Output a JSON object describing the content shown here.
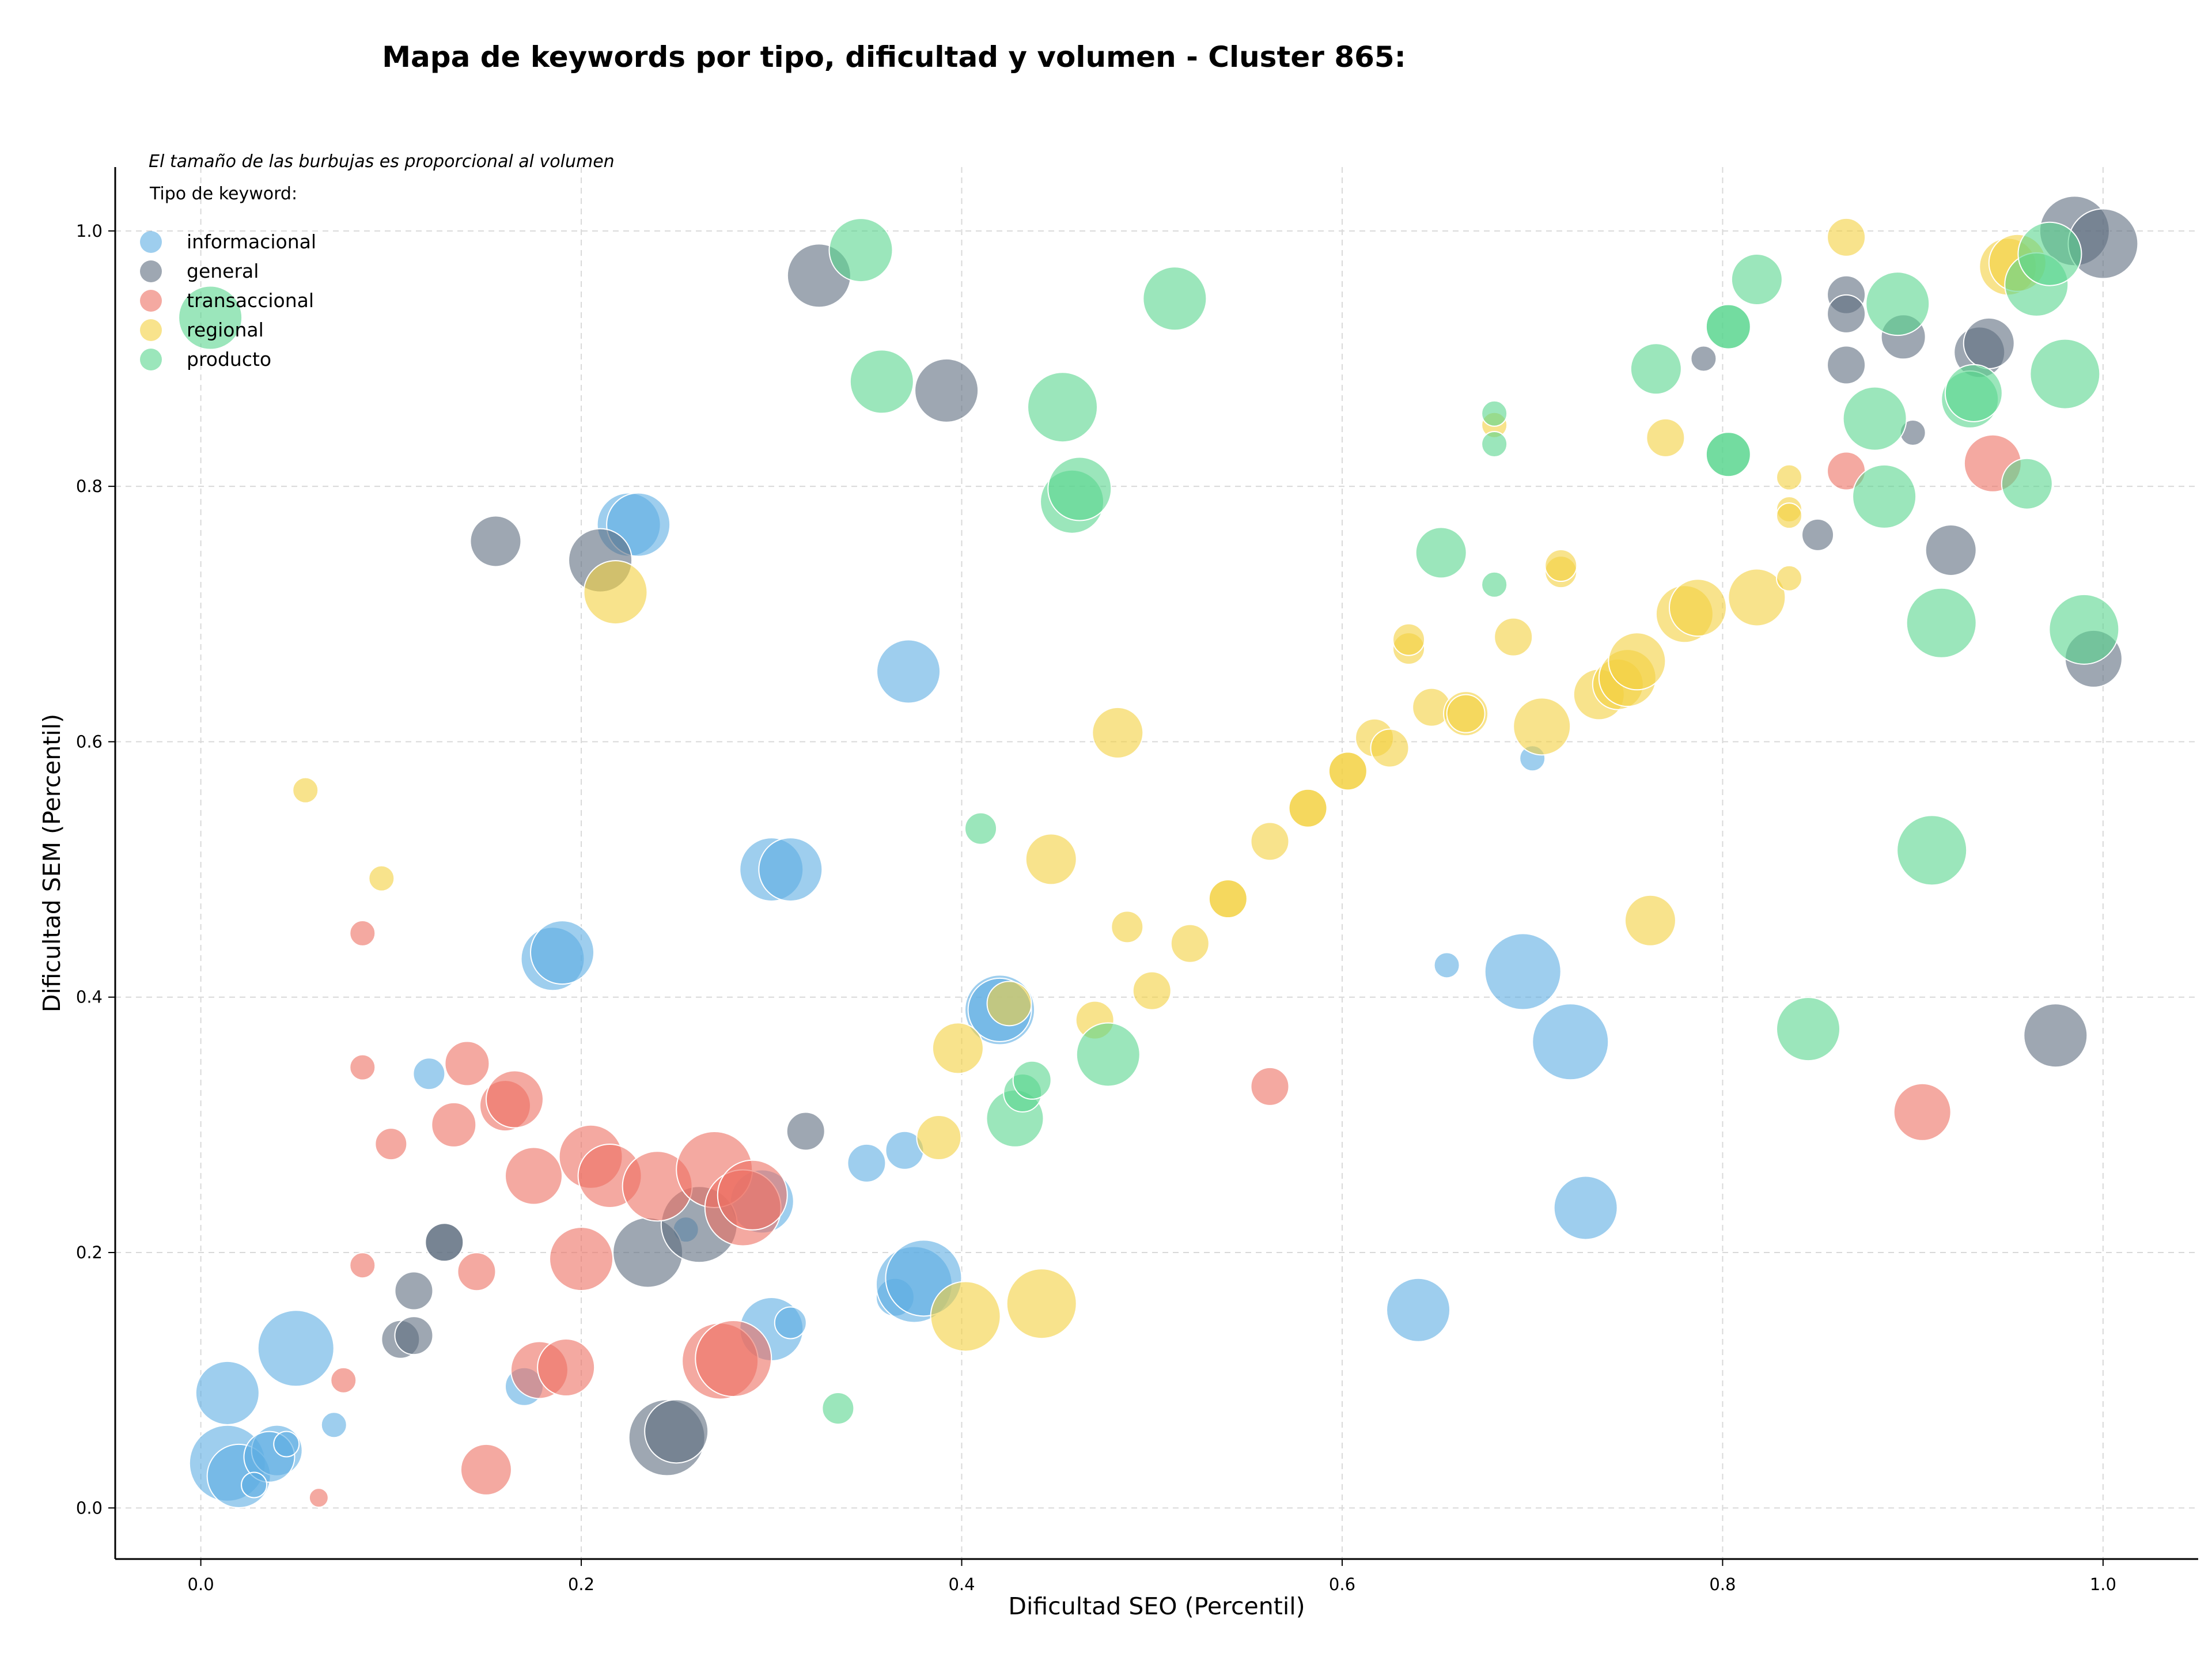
{
  "chart_data": {
    "type": "scatter",
    "title": "Mapa de keywords por tipo, dificultad y volumen - Cluster 865:",
    "xlabel": "Dificultad SEO (Percentil)",
    "ylabel": "Dificultad SEM (Percentil)",
    "xlim": [
      -0.045,
      1.05
    ],
    "ylim": [
      -0.04,
      1.05
    ],
    "xticks": [
      "0.0",
      "0.2",
      "0.4",
      "0.6",
      "0.8",
      "1.0"
    ],
    "yticks": [
      "0.0",
      "0.2",
      "0.4",
      "0.6",
      "0.8",
      "1.0"
    ],
    "grid": true,
    "size_note": "El tamaño de las burbujas es proporcional al volumen",
    "legend_title": "Tipo de keyword:",
    "legend_position": "top-left",
    "series": [
      {
        "name": "informacional",
        "color": "#5DADE2",
        "points": [
          [
            0.014,
            0.035,
            6
          ],
          [
            0.02,
            0.025,
            5
          ],
          [
            0.04,
            0.045,
            4
          ],
          [
            0.036,
            0.04,
            4
          ],
          [
            0.028,
            0.018,
            2
          ],
          [
            0.045,
            0.05,
            2
          ],
          [
            0.014,
            0.09,
            5
          ],
          [
            0.05,
            0.125,
            6
          ],
          [
            0.07,
            0.065,
            2
          ],
          [
            0.12,
            0.34,
            2.5
          ],
          [
            0.17,
            0.095,
            3
          ],
          [
            0.185,
            0.43,
            5
          ],
          [
            0.19,
            0.435,
            5
          ],
          [
            0.225,
            0.77,
            5
          ],
          [
            0.23,
            0.77,
            5
          ],
          [
            0.3,
            0.5,
            5
          ],
          [
            0.31,
            0.5,
            5
          ],
          [
            0.255,
            0.218,
            2
          ],
          [
            0.295,
            0.24,
            5
          ],
          [
            0.3,
            0.14,
            5
          ],
          [
            0.31,
            0.145,
            2.5
          ],
          [
            0.35,
            0.27,
            3
          ],
          [
            0.37,
            0.28,
            3
          ],
          [
            0.365,
            0.165,
            3
          ],
          [
            0.375,
            0.175,
            6
          ],
          [
            0.38,
            0.18,
            6
          ],
          [
            0.372,
            0.655,
            5
          ],
          [
            0.42,
            0.39,
            5.5
          ],
          [
            0.42,
            0.39,
            5
          ],
          [
            0.64,
            0.155,
            5
          ],
          [
            0.655,
            0.425,
            2
          ],
          [
            0.695,
            0.42,
            6
          ],
          [
            0.7,
            0.587,
            2
          ],
          [
            0.72,
            0.365,
            6
          ],
          [
            0.728,
            0.235,
            5
          ]
        ]
      },
      {
        "name": "general",
        "color": "#5D6D7E",
        "points": [
          [
            0.105,
            0.132,
            3
          ],
          [
            0.112,
            0.135,
            3
          ],
          [
            0.112,
            0.17,
            3
          ],
          [
            0.128,
            0.208,
            3
          ],
          [
            0.128,
            0.208,
            3
          ],
          [
            0.155,
            0.757,
            4
          ],
          [
            0.21,
            0.742,
            5
          ],
          [
            0.235,
            0.2,
            5.5
          ],
          [
            0.245,
            0.055,
            6
          ],
          [
            0.25,
            0.06,
            5
          ],
          [
            0.262,
            0.222,
            6
          ],
          [
            0.318,
            0.295,
            3
          ],
          [
            0.325,
            0.965,
            5
          ],
          [
            0.392,
            0.875,
            5
          ],
          [
            0.79,
            0.9,
            2
          ],
          [
            0.85,
            0.762,
            2.5
          ],
          [
            0.865,
            0.95,
            3
          ],
          [
            0.865,
            0.935,
            3
          ],
          [
            0.865,
            0.895,
            3
          ],
          [
            0.895,
            0.917,
            3.5
          ],
          [
            0.9,
            0.842,
            2
          ],
          [
            0.92,
            0.75,
            4
          ],
          [
            0.935,
            0.905,
            4
          ],
          [
            0.94,
            0.912,
            4
          ],
          [
            0.975,
            0.37,
            5
          ],
          [
            0.985,
            1.0,
            5.5
          ],
          [
            0.995,
            0.665,
            4.5
          ],
          [
            1.0,
            0.99,
            5.5
          ]
        ]
      },
      {
        "name": "transaccional",
        "color": "#EC7063",
        "points": [
          [
            0.062,
            0.008,
            1.5
          ],
          [
            0.075,
            0.1,
            2
          ],
          [
            0.085,
            0.19,
            2
          ],
          [
            0.085,
            0.345,
            2
          ],
          [
            0.085,
            0.45,
            2
          ],
          [
            0.1,
            0.285,
            2.5
          ],
          [
            0.133,
            0.3,
            3.5
          ],
          [
            0.14,
            0.348,
            3.5
          ],
          [
            0.145,
            0.185,
            3
          ],
          [
            0.15,
            0.03,
            4
          ],
          [
            0.16,
            0.315,
            4
          ],
          [
            0.165,
            0.32,
            4.5
          ],
          [
            0.175,
            0.26,
            4.5
          ],
          [
            0.178,
            0.108,
            4.5
          ],
          [
            0.192,
            0.11,
            4.5
          ],
          [
            0.2,
            0.195,
            5
          ],
          [
            0.205,
            0.275,
            5
          ],
          [
            0.215,
            0.26,
            5
          ],
          [
            0.24,
            0.252,
            5.5
          ],
          [
            0.27,
            0.265,
            6
          ],
          [
            0.273,
            0.115,
            6
          ],
          [
            0.28,
            0.117,
            6
          ],
          [
            0.285,
            0.235,
            6
          ],
          [
            0.29,
            0.245,
            5.5
          ],
          [
            0.562,
            0.33,
            3
          ],
          [
            0.865,
            0.812,
            3
          ],
          [
            0.905,
            0.31,
            4.5
          ],
          [
            0.942,
            0.818,
            4.5
          ]
        ]
      },
      {
        "name": "regional",
        "color": "#F4D03F",
        "points": [
          [
            0.055,
            0.562,
            2
          ],
          [
            0.095,
            0.493,
            2
          ],
          [
            0.218,
            0.717,
            5
          ],
          [
            0.388,
            0.29,
            3.5
          ],
          [
            0.398,
            0.36,
            4
          ],
          [
            0.402,
            0.15,
            5.5
          ],
          [
            0.425,
            0.395,
            3.5
          ],
          [
            0.442,
            0.16,
            5.5
          ],
          [
            0.447,
            0.508,
            4
          ],
          [
            0.47,
            0.382,
            3
          ],
          [
            0.482,
            0.607,
            4
          ],
          [
            0.487,
            0.455,
            2.5
          ],
          [
            0.5,
            0.405,
            3
          ],
          [
            0.52,
            0.442,
            3
          ],
          [
            0.54,
            0.477,
            3
          ],
          [
            0.54,
            0.477,
            3
          ],
          [
            0.562,
            0.522,
            3
          ],
          [
            0.582,
            0.548,
            3
          ],
          [
            0.582,
            0.548,
            3
          ],
          [
            0.603,
            0.577,
            3
          ],
          [
            0.603,
            0.577,
            3
          ],
          [
            0.617,
            0.603,
            3
          ],
          [
            0.625,
            0.595,
            3
          ],
          [
            0.635,
            0.673,
            2.5
          ],
          [
            0.635,
            0.68,
            2.5
          ],
          [
            0.647,
            0.627,
            3
          ],
          [
            0.665,
            0.622,
            3.5
          ],
          [
            0.665,
            0.622,
            3
          ],
          [
            0.69,
            0.682,
            3
          ],
          [
            0.705,
            0.612,
            4.5
          ],
          [
            0.715,
            0.733,
            2.5
          ],
          [
            0.715,
            0.738,
            2.5
          ],
          [
            0.735,
            0.637,
            4
          ],
          [
            0.745,
            0.645,
            4
          ],
          [
            0.75,
            0.65,
            4.5
          ],
          [
            0.755,
            0.663,
            4.5
          ],
          [
            0.762,
            0.46,
            4
          ],
          [
            0.77,
            0.838,
            3
          ],
          [
            0.78,
            0.7,
            4.5
          ],
          [
            0.787,
            0.705,
            4.5
          ],
          [
            0.818,
            0.713,
            4.5
          ],
          [
            0.835,
            0.782,
            2
          ],
          [
            0.835,
            0.777,
            2
          ],
          [
            0.835,
            0.807,
            2
          ],
          [
            0.835,
            0.728,
            2
          ],
          [
            0.865,
            0.995,
            3
          ],
          [
            0.95,
            0.972,
            4.5
          ],
          [
            0.955,
            0.975,
            4.5
          ],
          [
            0.68,
            0.848,
            2
          ]
        ]
      },
      {
        "name": "producto",
        "color": "#58D68D",
        "points": [
          [
            0.005,
            0.932,
            5
          ],
          [
            0.347,
            0.985,
            5
          ],
          [
            0.358,
            0.882,
            5
          ],
          [
            0.335,
            0.078,
            2.5
          ],
          [
            0.41,
            0.532,
            2.5
          ],
          [
            0.428,
            0.305,
            4.5
          ],
          [
            0.432,
            0.325,
            3
          ],
          [
            0.437,
            0.335,
            3
          ],
          [
            0.453,
            0.862,
            5.5
          ],
          [
            0.458,
            0.788,
            5
          ],
          [
            0.462,
            0.798,
            5
          ],
          [
            0.477,
            0.355,
            5
          ],
          [
            0.512,
            0.947,
            5
          ],
          [
            0.652,
            0.748,
            4
          ],
          [
            0.68,
            0.857,
            2
          ],
          [
            0.68,
            0.833,
            2
          ],
          [
            0.68,
            0.723,
            2
          ],
          [
            0.765,
            0.892,
            4
          ],
          [
            0.803,
            0.925,
            3.5
          ],
          [
            0.803,
            0.925,
            3.5
          ],
          [
            0.803,
            0.825,
            3.5
          ],
          [
            0.803,
            0.825,
            3.5
          ],
          [
            0.818,
            0.962,
            4
          ],
          [
            0.845,
            0.375,
            5
          ],
          [
            0.88,
            0.853,
            5
          ],
          [
            0.885,
            0.792,
            5
          ],
          [
            0.892,
            0.943,
            5
          ],
          [
            0.91,
            0.515,
            5.5
          ],
          [
            0.915,
            0.693,
            5.5
          ],
          [
            0.93,
            0.868,
            4.5
          ],
          [
            0.932,
            0.873,
            4.5
          ],
          [
            0.96,
            0.802,
            4
          ],
          [
            0.965,
            0.958,
            5
          ],
          [
            0.972,
            0.982,
            5
          ],
          [
            0.98,
            0.888,
            5.5
          ],
          [
            0.99,
            0.688,
            5.5
          ]
        ]
      }
    ]
  }
}
